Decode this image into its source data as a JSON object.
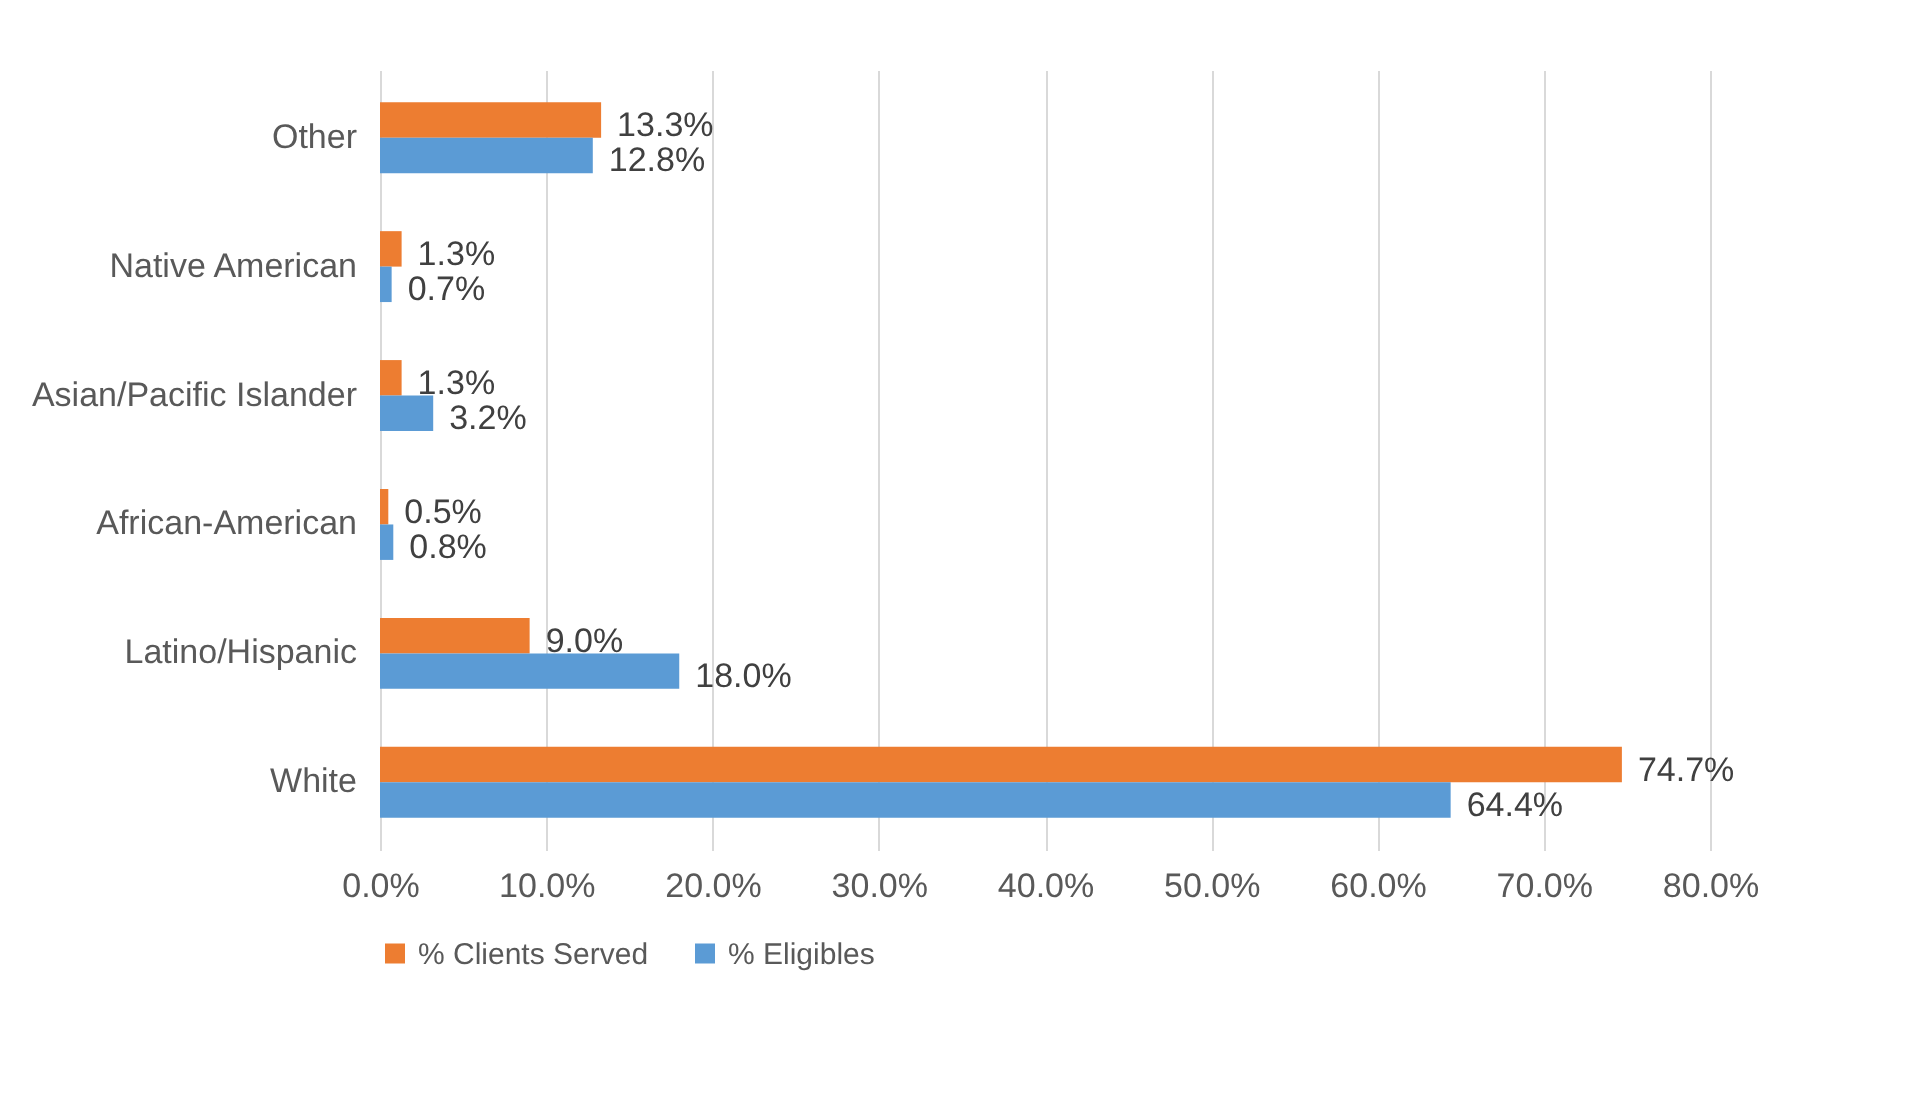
{
  "chart_data": {
    "type": "bar",
    "orientation": "horizontal",
    "categories": [
      "Other",
      "Native American",
      "Asian/Pacific Islander",
      "African-American",
      "Latino/Hispanic",
      "White"
    ],
    "series": [
      {
        "name": "% Clients Served",
        "color": "#ed7d31",
        "values": [
          13.3,
          1.3,
          1.3,
          0.5,
          9.0,
          74.7
        ],
        "value_labels": [
          "13.3%",
          "1.3%",
          "1.3%",
          "0.5%",
          "9.0%",
          "74.7%"
        ]
      },
      {
        "name": "% Eligibles",
        "color": "#5b9bd5",
        "values": [
          12.8,
          0.7,
          3.2,
          0.8,
          18.0,
          64.4
        ],
        "value_labels": [
          "12.8%",
          "0.7%",
          "3.2%",
          "0.8%",
          "18.0%",
          "64.4%"
        ]
      }
    ],
    "xlim": [
      0,
      80
    ],
    "xticks": [
      {
        "value": 0,
        "label": "0.0%"
      },
      {
        "value": 10,
        "label": "10.0%"
      },
      {
        "value": 20,
        "label": "20.0%"
      },
      {
        "value": 30,
        "label": "30.0%"
      },
      {
        "value": 40,
        "label": "40.0%"
      },
      {
        "value": 50,
        "label": "50.0%"
      },
      {
        "value": 60,
        "label": "60.0%"
      },
      {
        "value": 70,
        "label": "70.0%"
      },
      {
        "value": 80,
        "label": "80.0%"
      }
    ],
    "grid": "x",
    "legend": "bottom"
  }
}
